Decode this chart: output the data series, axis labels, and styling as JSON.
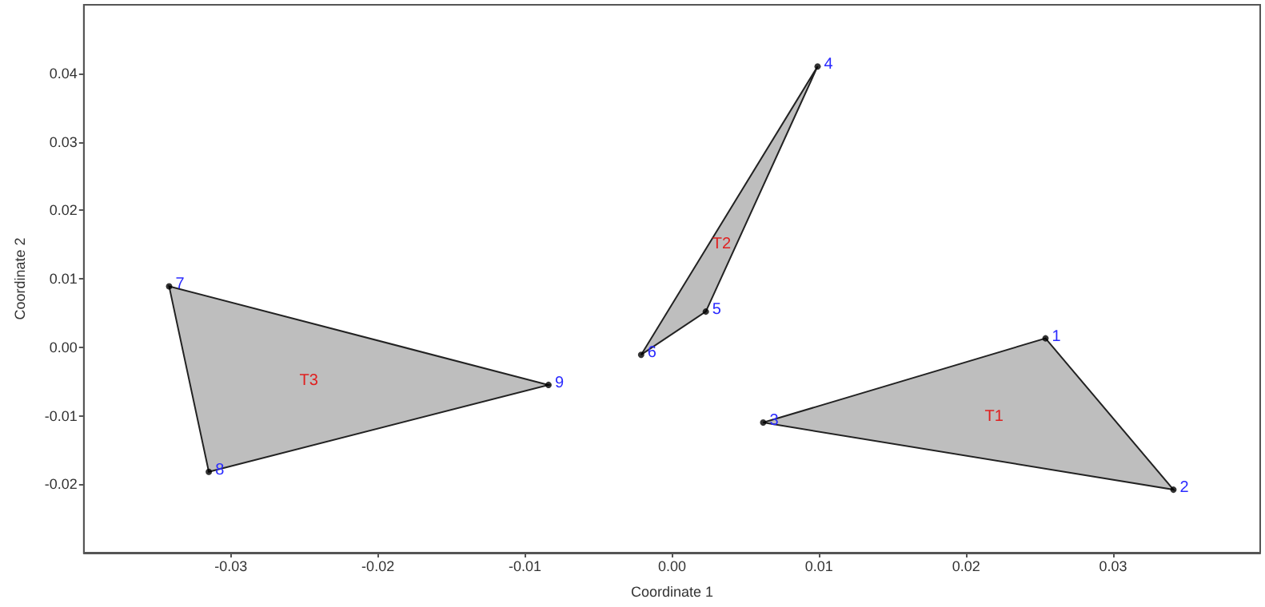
{
  "chart_data": {
    "type": "scatter",
    "xlabel": "Coordinate 1",
    "ylabel": "Coordinate 2",
    "xlim": [
      -0.04,
      0.04
    ],
    "ylim": [
      -0.03,
      0.05
    ],
    "xticks": [
      -0.03,
      -0.02,
      -0.01,
      {
        "value": 0,
        "label": "0.00"
      },
      0.01,
      0.02,
      0.03
    ],
    "yticks": [
      -0.02,
      -0.01,
      {
        "value": 0,
        "label": "0.00"
      },
      0.01,
      0.02,
      0.03,
      0.04
    ],
    "grid": false,
    "series": [
      {
        "type": "area",
        "name": "T1",
        "color": "#bebebe",
        "x": [
          0.0254,
          0.0341,
          0.0062
        ],
        "values": [
          0.0013,
          -0.0208,
          -0.011
        ]
      },
      {
        "type": "area",
        "name": "T2",
        "color": "#bebebe",
        "x": [
          0.0099,
          0.0023,
          -0.0021
        ],
        "values": [
          0.041,
          0.0052,
          -0.0011
        ]
      },
      {
        "type": "area",
        "name": "T3",
        "color": "#bebebe",
        "x": [
          -0.0342,
          -0.0084,
          -0.0315
        ],
        "values": [
          0.0089,
          -0.0055,
          -0.0182
        ]
      },
      {
        "marker": "circle",
        "color": "#000000",
        "x": [
          0.0254,
          0.0341,
          0.0062,
          0.0099,
          0.0023,
          -0.0021,
          -0.0342,
          -0.0315,
          -0.0084
        ],
        "values": [
          0.0013,
          -0.0208,
          -0.011,
          0.041,
          0.0052,
          -0.0011,
          0.0089,
          -0.0182,
          -0.0055
        ]
      }
    ],
    "annotations": [
      {
        "text": "1",
        "x": 0.0254,
        "y": 0.0013
      },
      {
        "text": "2",
        "x": 0.0341,
        "y": -0.0208
      },
      {
        "text": "3",
        "x": 0.0062,
        "y": -0.011
      },
      {
        "text": "4",
        "x": 0.0099,
        "y": 0.041
      },
      {
        "text": "5",
        "x": 0.0023,
        "y": 0.0052
      },
      {
        "text": "6",
        "x": -0.0021,
        "y": -0.0011
      },
      {
        "text": "7",
        "x": -0.0342,
        "y": 0.0089
      },
      {
        "text": "8",
        "x": -0.0315,
        "y": -0.0182
      },
      {
        "text": "9",
        "x": -0.0084,
        "y": -0.0055
      }
    ]
  }
}
